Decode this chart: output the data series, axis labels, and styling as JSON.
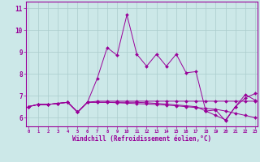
{
  "xlabel": "Windchill (Refroidissement éolien,°C)",
  "bg_color": "#cce8e8",
  "grid_color": "#aacccc",
  "line_color": "#990099",
  "x_hours": [
    0,
    1,
    2,
    3,
    4,
    5,
    6,
    7,
    8,
    9,
    10,
    11,
    12,
    13,
    14,
    15,
    16,
    17,
    18,
    19,
    20,
    21,
    22,
    23
  ],
  "series1": [
    6.5,
    6.6,
    6.6,
    6.65,
    6.7,
    6.25,
    6.7,
    7.8,
    9.2,
    8.85,
    10.7,
    8.9,
    8.35,
    8.9,
    8.35,
    8.9,
    8.05,
    8.1,
    6.3,
    6.35,
    5.85,
    6.5,
    7.05,
    6.8
  ],
  "series2": [
    6.5,
    6.6,
    6.6,
    6.65,
    6.7,
    6.25,
    6.7,
    6.75,
    6.75,
    6.75,
    6.75,
    6.75,
    6.75,
    6.75,
    6.75,
    6.75,
    6.75,
    6.75,
    6.75,
    6.75,
    6.75,
    6.75,
    6.75,
    6.75
  ],
  "series3": [
    6.5,
    6.6,
    6.6,
    6.65,
    6.7,
    6.25,
    6.7,
    6.7,
    6.7,
    6.68,
    6.66,
    6.64,
    6.62,
    6.6,
    6.57,
    6.54,
    6.5,
    6.46,
    6.42,
    6.38,
    6.3,
    6.2,
    6.1,
    6.0
  ],
  "series4": [
    6.5,
    6.6,
    6.6,
    6.65,
    6.7,
    6.25,
    6.7,
    6.7,
    6.7,
    6.7,
    6.7,
    6.7,
    6.68,
    6.65,
    6.62,
    6.58,
    6.54,
    6.5,
    6.3,
    6.1,
    5.9,
    6.5,
    6.9,
    7.1
  ],
  "ylim": [
    5.6,
    11.3
  ],
  "yticks": [
    6,
    7,
    8,
    9,
    10,
    11
  ],
  "xticks": [
    0,
    1,
    2,
    3,
    4,
    5,
    6,
    7,
    8,
    9,
    10,
    11,
    12,
    13,
    14,
    15,
    16,
    17,
    18,
    19,
    20,
    21,
    22,
    23
  ]
}
